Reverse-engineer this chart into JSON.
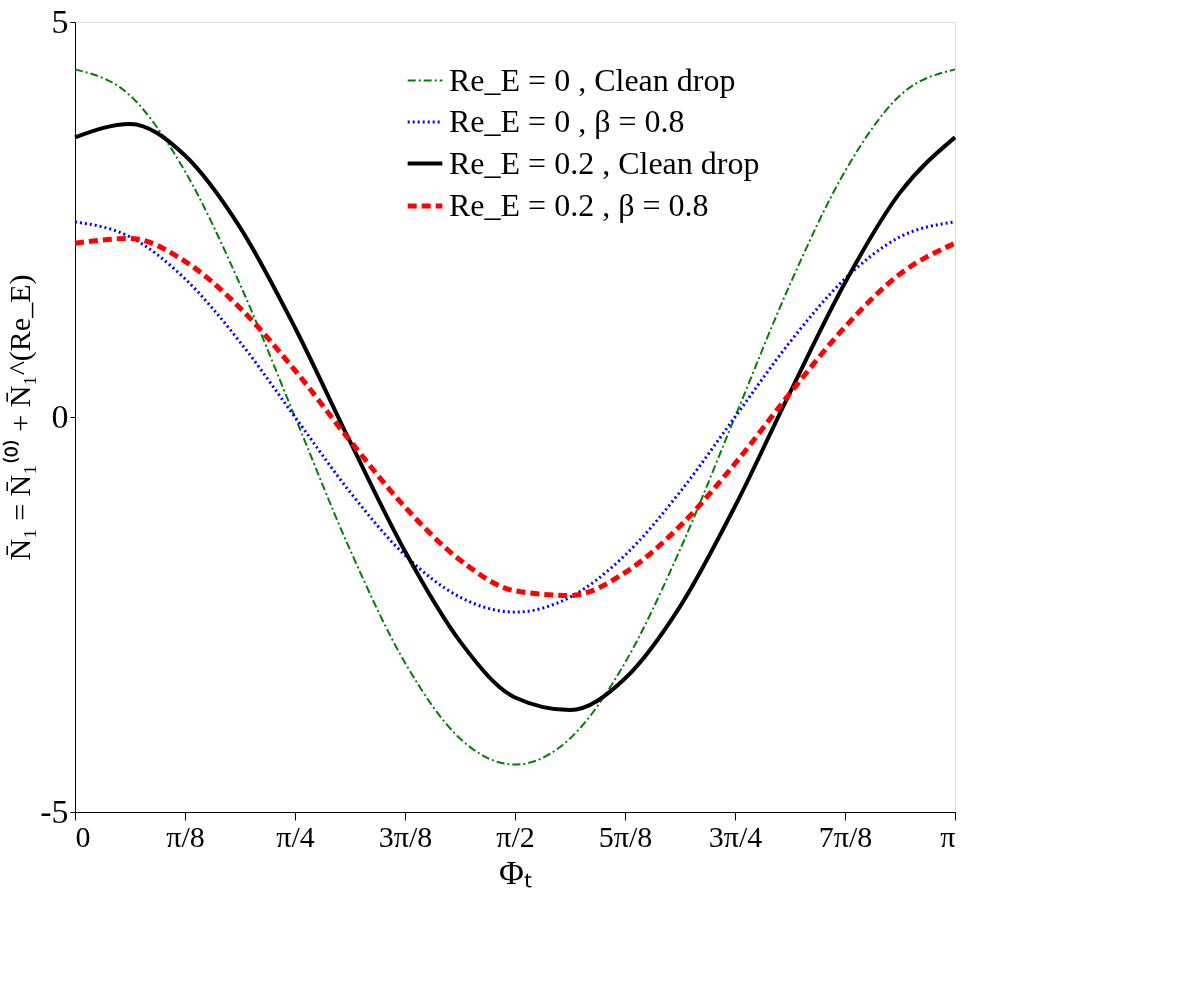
{
  "chart_data": {
    "type": "line",
    "xlabel": "Φₜ",
    "ylabel": "N̄₁ = N̄₁⁽⁰⁾ + N̄₁^(Re_E)",
    "x": [
      0,
      0.19635,
      0.3927,
      0.58905,
      0.7854,
      0.98175,
      1.1781,
      1.37445,
      1.5708,
      1.76715,
      1.9635,
      2.15984,
      2.35619,
      2.55254,
      2.74889,
      2.94524,
      3.14159
    ],
    "xlim": [
      0,
      3.14159
    ],
    "xticks": [
      0,
      {
        "value": 0.3927,
        "label": "π/8"
      },
      {
        "value": 0.7854,
        "label": "π/4"
      },
      {
        "value": 1.1781,
        "label": "3π/8"
      },
      {
        "value": 1.5708,
        "label": "π/2"
      },
      {
        "value": 1.9635,
        "label": "5π/8"
      },
      {
        "value": 2.35619,
        "label": "3π/4"
      },
      {
        "value": 2.74889,
        "label": "7π/8"
      },
      {
        "value": 3.14159,
        "label": "π"
      }
    ],
    "ylim": [
      -5,
      5
    ],
    "yticks": [
      -5,
      0,
      5
    ],
    "grid": false,
    "legend": "top",
    "series": [
      {
        "name": "Re_E = 0 , Clean drop",
        "color": "#008000",
        "line_style": "dashdot",
        "values": [
          4.4,
          4.07,
          3.11,
          1.68,
          0,
          -1.68,
          -3.11,
          -4.07,
          -4.4,
          -4.07,
          -3.11,
          -1.68,
          0,
          1.68,
          3.11,
          4.07,
          4.4
        ]
      },
      {
        "name": "Re_E = 0 , β = 0.8",
        "color": "#0000ff",
        "line_style": "dotted",
        "values": [
          2.47,
          2.28,
          1.75,
          0.95,
          0,
          -0.95,
          -1.75,
          -2.28,
          -2.47,
          -2.28,
          -1.75,
          -0.95,
          0,
          0.95,
          1.75,
          2.28,
          2.47
        ]
      },
      {
        "name": "Re_E = 0.2 , Clean drop",
        "color": "#000000",
        "line_style": "solid",
        "values": [
          3.54,
          3.71,
          3.31,
          2.4,
          1.13,
          -0.31,
          -1.7,
          -2.84,
          -3.55,
          -3.71,
          -3.31,
          -2.4,
          -1.13,
          0.31,
          1.7,
          2.84,
          3.54
        ]
      },
      {
        "name": "Re_E = 0.2 , β = 0.8",
        "color": "#ff0000",
        "line_style": "dashed",
        "values": [
          2.2,
          2.26,
          1.97,
          1.38,
          0.59,
          -0.3,
          -1.14,
          -1.81,
          -2.2,
          -2.26,
          -1.97,
          -1.38,
          -0.59,
          0.3,
          1.14,
          1.81,
          2.2
        ]
      }
    ]
  }
}
